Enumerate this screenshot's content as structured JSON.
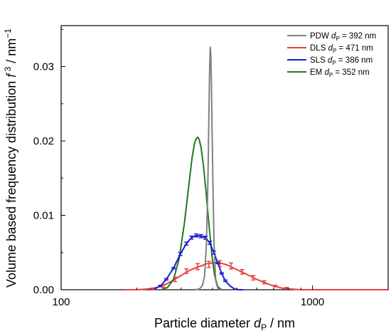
{
  "chart_data": {
    "type": "line",
    "xscale": "log",
    "xlim": [
      100,
      2000
    ],
    "ylim": [
      0,
      0.0355
    ],
    "xticks": [
      100,
      1000
    ],
    "xtick_labels": [
      "100",
      "1000"
    ],
    "yticks": [
      0,
      0.01,
      0.02,
      0.03
    ],
    "ytick_labels": [
      "0.00",
      "0.01",
      "0.02",
      "0.03"
    ],
    "xlabel": {
      "main": "Particle diameter ",
      "var": "d",
      "sub": "P",
      "unit": " / nm"
    },
    "ylabel": {
      "main": "Volume based frequency distribution ",
      "var": "f",
      "sup": " 3",
      "unit": " / nm",
      "unitsup": "−1"
    },
    "legend_position": "top-right",
    "grid": false,
    "series": [
      {
        "id": "pdw",
        "color": "#808080",
        "legend": {
          "pre": "PDW ",
          "var": "d",
          "sub": "P",
          "post": " = 392 nm"
        },
        "x": [
          340,
          355,
          365,
          372,
          378,
          382,
          385,
          388,
          390,
          392,
          394,
          396,
          399,
          402,
          406,
          412,
          420,
          430
        ],
        "y": [
          0,
          0.0001,
          0.0006,
          0.0018,
          0.0058,
          0.0115,
          0.0178,
          0.0258,
          0.0302,
          0.0326,
          0.0316,
          0.028,
          0.0205,
          0.0135,
          0.006,
          0.0012,
          0.0002,
          0
        ]
      },
      {
        "id": "dls",
        "color": "#e8403f",
        "legend": {
          "pre": "DLS ",
          "var": "d",
          "sub": "P",
          "post": " = 471 nm"
        },
        "x": [
          180,
          200,
          220,
          240,
          260,
          280,
          300,
          320,
          340,
          360,
          380,
          400,
          420,
          440,
          460,
          480,
          500,
          530,
          560,
          600,
          650,
          700,
          760,
          820,
          900,
          1000,
          1200,
          1500,
          2000
        ],
        "y": [
          0,
          0,
          0.0001,
          0.0003,
          0.0007,
          0.0013,
          0.0019,
          0.0025,
          0.0029,
          0.0032,
          0.0035,
          0.0036,
          0.0036,
          0.0035,
          0.0033,
          0.003,
          0.0027,
          0.0023,
          0.0019,
          0.0014,
          0.0009,
          0.0005,
          0.0002,
          0.0001,
          0,
          0,
          0,
          0,
          0
        ],
        "errorbars": {
          "x": [
            231,
            256,
            284,
            315,
            349,
            387,
            428,
            474,
            525,
            581,
            643,
            713,
            789
          ],
          "y": [
            0.0001,
            0.0005,
            0.0014,
            0.0025,
            0.0031,
            0.0034,
            0.0035,
            0.0032,
            0.0024,
            0.0016,
            0.001,
            0.0005,
            0.0002
          ],
          "err": [
            0.0001,
            0.0002,
            0.0003,
            0.0003,
            0.0004,
            0.0004,
            0.0004,
            0.0004,
            0.0003,
            0.0003,
            0.0002,
            0.0001,
            0.0001
          ]
        }
      },
      {
        "id": "sls",
        "color": "#1c1cd6",
        "legend": {
          "pre": "SLS ",
          "var": "d",
          "sub": "P",
          "post": " = 386 nm"
        },
        "x": [
          225,
          235,
          248,
          262,
          280,
          298,
          315,
          330,
          345,
          360,
          375,
          390,
          405,
          420,
          435,
          450,
          470,
          490,
          510,
          530
        ],
        "y": [
          0,
          0.0001,
          0.0005,
          0.0014,
          0.0029,
          0.0048,
          0.0062,
          0.007,
          0.0073,
          0.0072,
          0.007,
          0.0063,
          0.005,
          0.0036,
          0.0022,
          0.0012,
          0.0005,
          0.0001,
          0,
          0
        ],
        "errorbars": {
          "x": [
            248,
            262,
            280,
            298,
            315,
            330,
            345,
            360,
            375,
            390,
            405,
            420,
            435,
            450
          ],
          "y": [
            0.0005,
            0.0014,
            0.0029,
            0.0048,
            0.0062,
            0.007,
            0.0073,
            0.0072,
            0.007,
            0.0063,
            0.005,
            0.0036,
            0.0022,
            0.0012
          ],
          "err": [
            0.0001,
            0.0001,
            0.0001,
            0.0002,
            0.0002,
            0.0002,
            0.0002,
            0.0002,
            0.0002,
            0.0002,
            0.0002,
            0.0001,
            0.0001,
            0.0001
          ]
        }
      },
      {
        "id": "em",
        "color": "#1f7a1f",
        "legend": {
          "pre": "EM ",
          "var": "d",
          "sub": "P",
          "post": "  = 352 nm"
        },
        "x": [
          250,
          265,
          280,
          295,
          310,
          322,
          332,
          340,
          346,
          350,
          354,
          360,
          368,
          378,
          388,
          398,
          408,
          420,
          435
        ],
        "y": [
          0,
          0.0003,
          0.0014,
          0.0042,
          0.0092,
          0.014,
          0.0178,
          0.0198,
          0.0204,
          0.0205,
          0.0202,
          0.0192,
          0.0168,
          0.0128,
          0.0085,
          0.0046,
          0.0019,
          0.0004,
          0
        ]
      }
    ]
  }
}
